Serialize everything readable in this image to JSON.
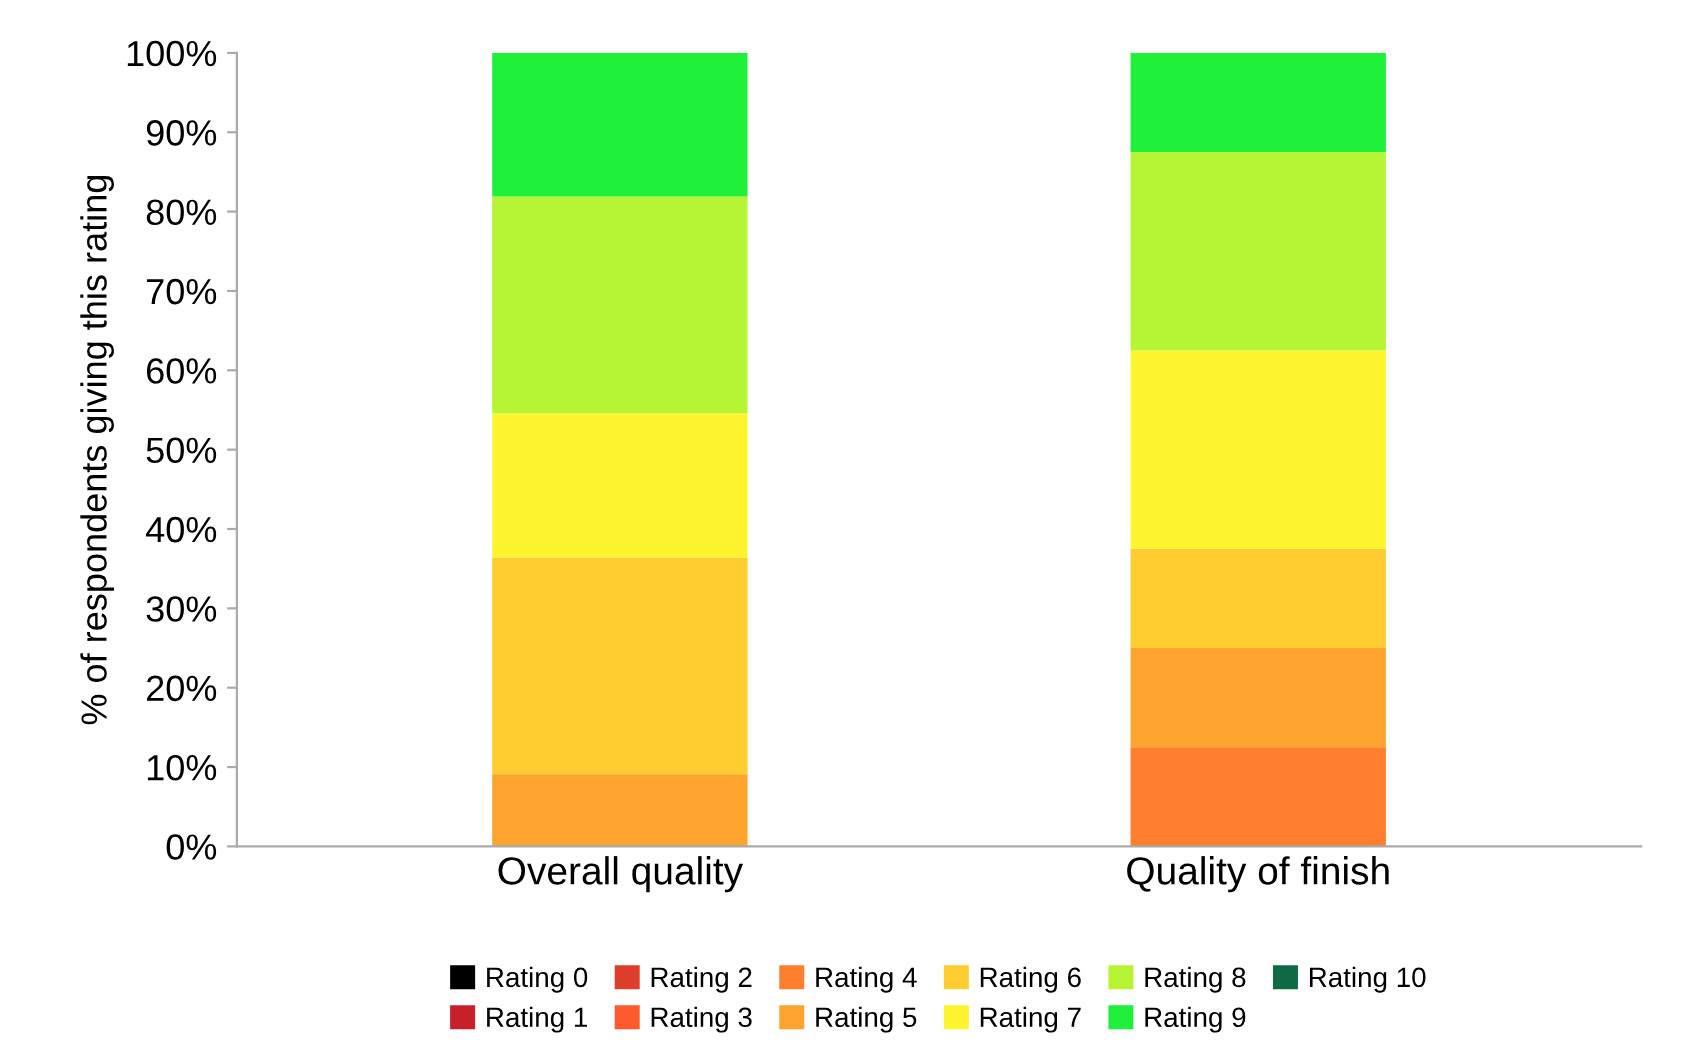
{
  "chart_data": {
    "type": "bar",
    "stacked": true,
    "ylabel": "% of respondents giving this rating",
    "categories": [
      "Overall quality",
      "Quality of finish"
    ],
    "series": [
      {
        "name": "Rating 0",
        "color": "#000000",
        "values": [
          0,
          0
        ]
      },
      {
        "name": "Rating 1",
        "color": "#c8202b",
        "values": [
          0,
          0
        ]
      },
      {
        "name": "Rating 2",
        "color": "#de3f2b",
        "values": [
          0,
          0
        ]
      },
      {
        "name": "Rating 3",
        "color": "#ff5a2e",
        "values": [
          0,
          0
        ]
      },
      {
        "name": "Rating 4",
        "color": "#ff7f2f",
        "values": [
          0,
          12.5
        ]
      },
      {
        "name": "Rating 5",
        "color": "#ffa32f",
        "values": [
          9.1,
          12.5
        ]
      },
      {
        "name": "Rating 6",
        "color": "#ffcd30",
        "values": [
          27.3,
          12.5
        ]
      },
      {
        "name": "Rating 7",
        "color": "#fff52f",
        "values": [
          18.2,
          25
        ]
      },
      {
        "name": "Rating 8",
        "color": "#b5f534",
        "values": [
          27.3,
          25
        ]
      },
      {
        "name": "Rating 9",
        "color": "#1ff03a",
        "values": [
          18.1,
          12.5
        ]
      },
      {
        "name": "Rating 10",
        "color": "#0e6b45",
        "values": [
          0,
          0
        ]
      }
    ],
    "ylim": [
      0,
      100
    ],
    "yticks": [
      {
        "value": 0,
        "label": "0%"
      },
      {
        "value": 10,
        "label": "10%"
      },
      {
        "value": 20,
        "label": "20%"
      },
      {
        "value": 30,
        "label": "30%"
      },
      {
        "value": 40,
        "label": "40%"
      },
      {
        "value": 50,
        "label": "50%"
      },
      {
        "value": 60,
        "label": "60%"
      },
      {
        "value": 70,
        "label": "70%"
      },
      {
        "value": 80,
        "label": "80%"
      },
      {
        "value": 90,
        "label": "90%"
      },
      {
        "value": 100,
        "label": "100%"
      }
    ],
    "legend": "bottom"
  }
}
